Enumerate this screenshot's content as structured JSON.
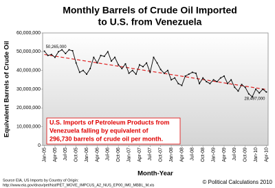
{
  "chart_data": {
    "type": "line",
    "title": [
      "Monthly Barrels of Crude Oil Imported",
      "to U.S. from Venezuela"
    ],
    "y_label": "Equivalent Barrels of Crude Oil",
    "x_label": "Month-Year",
    "categories": [
      "Jan-05",
      null,
      null,
      "Apr-05",
      null,
      null,
      "Jul-05",
      null,
      null,
      "Oct-05",
      null,
      null,
      "Jan-06",
      null,
      null,
      "Apr-06",
      null,
      null,
      "Jul-06",
      null,
      null,
      "Oct-06",
      null,
      null,
      "Jan-07",
      null,
      null,
      "Apr-07",
      null,
      null,
      "Jul-07",
      null,
      null,
      "Oct-07",
      null,
      null,
      "Jan-08",
      null,
      null,
      "Apr-08",
      null,
      null,
      "Jul-08",
      null,
      null,
      "Oct-08",
      null,
      null,
      "Jan-09",
      null,
      null,
      "Apr-09",
      null,
      null,
      "Jul-09",
      null,
      null,
      "Oct-09",
      null,
      null,
      "Jan-10",
      null,
      null,
      "Apr-10"
    ],
    "series": [
      {
        "color": "#000000",
        "values": [
          50265000,
          48000000,
          48500000,
          47000000,
          50000000,
          51000000,
          49000000,
          51000000,
          50500000,
          44000000,
          39000000,
          40000000,
          38000000,
          41000000,
          47000000,
          44000000,
          48000000,
          47500000,
          50000000,
          45000000,
          47000000,
          43000000,
          41000000,
          43500000,
          38500000,
          40000000,
          38000000,
          43000000,
          42000000,
          44000000,
          39000000,
          47000000,
          44000000,
          40500000,
          38500000,
          40000000,
          35000000,
          36000000,
          33000000,
          32000000,
          37000000,
          38000000,
          39000000,
          38500000,
          33000000,
          36000000,
          34000000,
          33000000,
          35000000,
          34000000,
          36000000,
          37000000,
          33000000,
          35000000,
          31000000,
          29000000,
          32500000,
          31000000,
          27500000,
          26000000,
          30000000,
          28000000,
          30000000,
          28497000
        ],
        "value_labels": [
          "50,265,000",
          null,
          null,
          null,
          null,
          null,
          null,
          null,
          null,
          null,
          null,
          null,
          null,
          null,
          null,
          null,
          null,
          null,
          null,
          null,
          null,
          null,
          null,
          null,
          null,
          null,
          null,
          null,
          null,
          null,
          null,
          null,
          null,
          null,
          null,
          null,
          null,
          null,
          null,
          null,
          null,
          null,
          null,
          null,
          null,
          null,
          null,
          null,
          null,
          null,
          null,
          null,
          null,
          null,
          null,
          null,
          null,
          null,
          null,
          null,
          null,
          null,
          null,
          "28,497,000"
        ]
      }
    ],
    "trend": {
      "color": "#e02020",
      "start": 48500000,
      "end": 29800000
    },
    "ylim": [
      0,
      60000000
    ],
    "yticks": [
      0,
      {
        "value": 10000000,
        "label": "10,000,000"
      },
      {
        "value": 20000000,
        "label": "20,000,000"
      },
      {
        "value": 30000000,
        "label": "30,000,000"
      },
      {
        "value": 40000000,
        "label": "40,000,000"
      },
      {
        "value": 50000000,
        "label": "50,000,000"
      },
      {
        "value": 60000000,
        "label": "60,000,000"
      }
    ],
    "annotation": [
      "U.S. Imports of Petroleum Products from",
      "Venezuela falling by equivalent of",
      "296,730 barrels of crude oil per month."
    ],
    "source": [
      "Source EIA, US Imports by Country of Origin:",
      "http://www.eia.gov/dnav/pet/hist/PET_MOVE_IMPCUS_A2_NUS_EP00_IM0_MBBL_M.xls"
    ],
    "credit": "© Political Calculations 2010"
  }
}
